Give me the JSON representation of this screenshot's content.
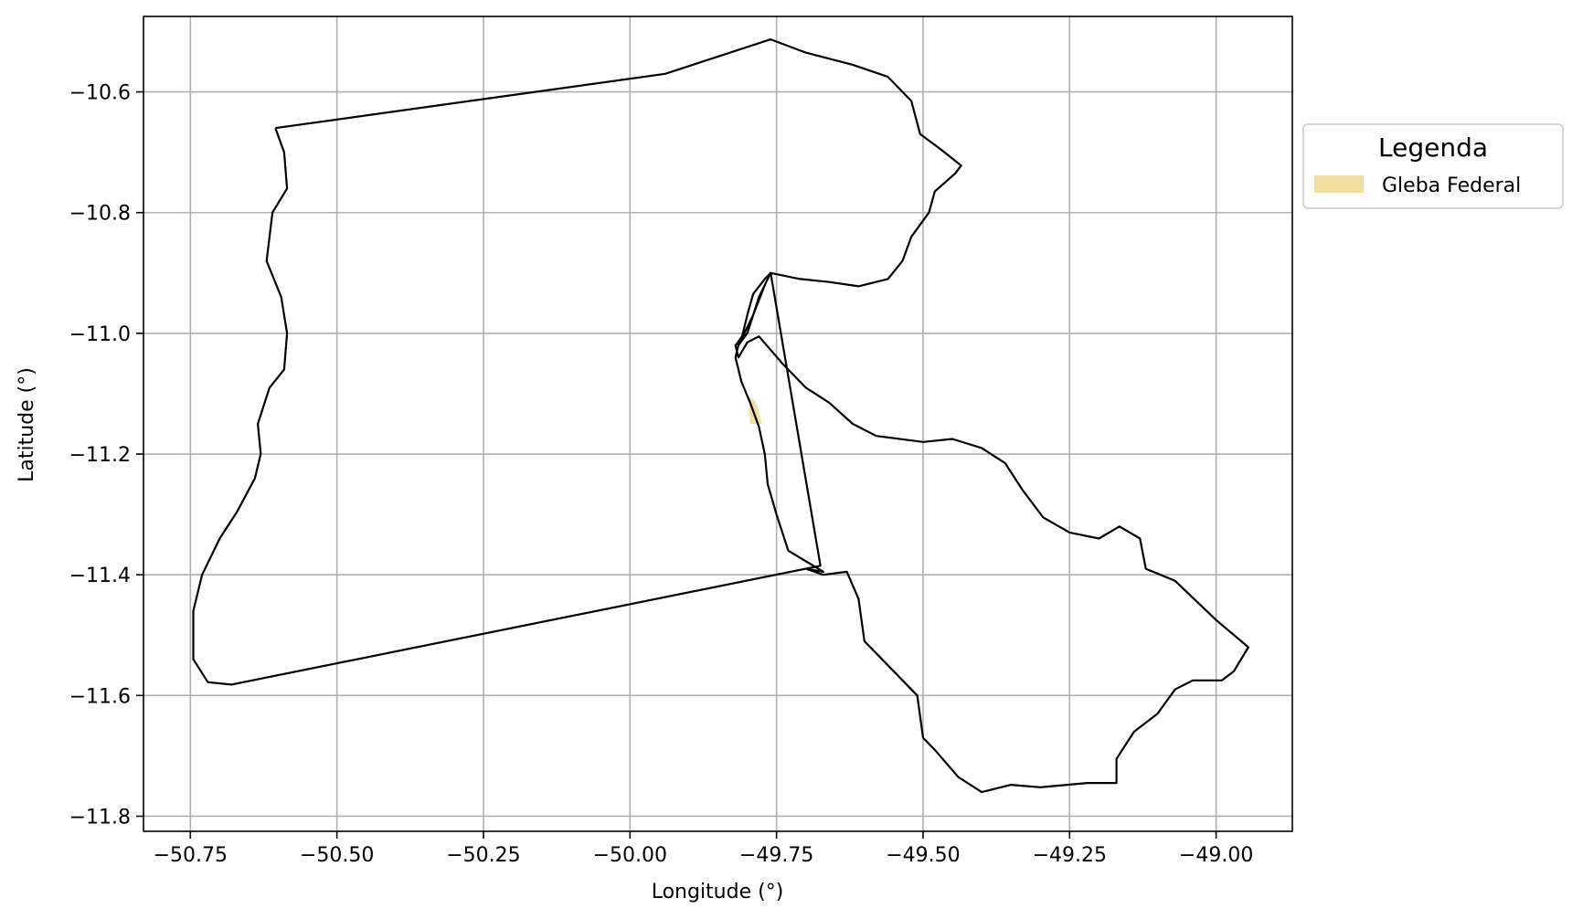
{
  "chart_data": {
    "type": "map",
    "title": "",
    "xlabel": "Longitude (°)",
    "ylabel": "Latitude (°)",
    "xlim": [
      -50.83,
      -48.87
    ],
    "ylim": [
      -11.825,
      -10.475
    ],
    "xticks": [
      -50.75,
      -50.5,
      -50.25,
      -50.0,
      -49.75,
      -49.5,
      -49.25,
      -49.0
    ],
    "xtick_labels": [
      "−50.75",
      "−50.50",
      "−50.25",
      "−50.00",
      "−49.75",
      "−49.50",
      "−49.25",
      "−49.00"
    ],
    "yticks": [
      -10.6,
      -10.8,
      -11.0,
      -11.2,
      -11.4,
      -11.6,
      -11.8
    ],
    "ytick_labels": [
      "−10.6",
      "−10.8",
      "−11.0",
      "−11.2",
      "−11.4",
      "−11.6",
      "−11.8"
    ],
    "grid": true,
    "legend": {
      "title": "Legenda",
      "placement": "outside-right-top",
      "entries": [
        {
          "label": "Gleba Federal",
          "color": "#f0df9e"
        }
      ]
    },
    "boundary_color": "#000000",
    "boundary": [
      [
        -50.605,
        -10.66
      ],
      [
        -49.94,
        -10.57
      ],
      [
        -49.76,
        -10.513
      ],
      [
        -49.7,
        -10.535
      ],
      [
        -49.62,
        -10.555
      ],
      [
        -49.56,
        -10.575
      ],
      [
        -49.52,
        -10.615
      ],
      [
        -49.505,
        -10.67
      ],
      [
        -49.47,
        -10.695
      ],
      [
        -49.435,
        -10.722
      ],
      [
        -49.445,
        -10.735
      ],
      [
        -49.48,
        -10.765
      ],
      [
        -49.49,
        -10.8
      ],
      [
        -49.52,
        -10.84
      ],
      [
        -49.535,
        -10.88
      ],
      [
        -49.56,
        -10.91
      ],
      [
        -49.61,
        -10.922
      ],
      [
        -49.66,
        -10.915
      ],
      [
        -49.71,
        -10.91
      ],
      [
        -49.76,
        -10.9
      ],
      [
        -49.77,
        -10.92
      ],
      [
        -49.79,
        -10.97
      ],
      [
        -49.8,
        -11.0
      ],
      [
        -49.82,
        -11.02
      ],
      [
        -49.815,
        -11.04
      ],
      [
        -49.8,
        -11.015
      ],
      [
        -49.78,
        -11.005
      ],
      [
        -49.74,
        -11.05
      ],
      [
        -49.7,
        -11.09
      ],
      [
        -49.66,
        -11.115
      ],
      [
        -49.62,
        -11.15
      ],
      [
        -49.58,
        -11.17
      ],
      [
        -49.5,
        -11.18
      ],
      [
        -49.45,
        -11.175
      ],
      [
        -49.4,
        -11.19
      ],
      [
        -49.36,
        -11.215
      ],
      [
        -49.33,
        -11.26
      ],
      [
        -49.295,
        -11.305
      ],
      [
        -49.25,
        -11.33
      ],
      [
        -49.2,
        -11.34
      ],
      [
        -49.165,
        -11.32
      ],
      [
        -49.13,
        -11.34
      ],
      [
        -49.12,
        -11.39
      ],
      [
        -49.07,
        -11.41
      ],
      [
        -49.0,
        -11.475
      ],
      [
        -48.945,
        -11.52
      ],
      [
        -48.97,
        -11.56
      ],
      [
        -48.99,
        -11.575
      ],
      [
        -49.04,
        -11.575
      ],
      [
        -49.07,
        -11.59
      ],
      [
        -49.1,
        -11.63
      ],
      [
        -49.14,
        -11.66
      ],
      [
        -49.17,
        -11.705
      ],
      [
        -49.17,
        -11.745
      ],
      [
        -49.22,
        -11.745
      ],
      [
        -49.3,
        -11.752
      ],
      [
        -49.35,
        -11.748
      ],
      [
        -49.4,
        -11.76
      ],
      [
        -49.44,
        -11.735
      ],
      [
        -49.48,
        -11.69
      ],
      [
        -49.5,
        -11.67
      ],
      [
        -49.51,
        -11.6
      ],
      [
        -49.56,
        -11.55
      ],
      [
        -49.6,
        -11.51
      ],
      [
        -49.61,
        -11.44
      ],
      [
        -49.63,
        -11.395
      ],
      [
        -49.67,
        -11.4
      ],
      [
        -49.7,
        -11.39
      ],
      [
        -49.67,
        -11.395
      ],
      [
        -49.73,
        -11.36
      ],
      [
        -49.75,
        -11.3
      ],
      [
        -49.765,
        -11.25
      ],
      [
        -49.77,
        -11.2
      ],
      [
        -49.78,
        -11.155
      ],
      [
        -49.795,
        -11.115
      ],
      [
        -49.81,
        -11.08
      ],
      [
        -49.82,
        -11.04
      ],
      [
        -49.815,
        -11.02
      ],
      [
        -49.8,
        -11.0
      ],
      [
        -49.79,
        -10.97
      ],
      [
        -49.77,
        -10.92
      ],
      [
        -49.76,
        -10.9
      ],
      [
        -49.77,
        -10.91
      ],
      [
        -49.79,
        -10.935
      ],
      [
        -49.8,
        -10.97
      ],
      [
        -49.81,
        -11.01
      ],
      [
        -49.82,
        -11.02
      ],
      [
        -49.805,
        -11.0
      ],
      [
        -49.79,
        -10.97
      ],
      [
        -49.78,
        -10.94
      ],
      [
        -49.765,
        -10.91
      ],
      [
        -49.76,
        -10.9
      ],
      [
        -49.675,
        -11.385
      ],
      [
        -50.68,
        -11.582
      ],
      [
        -50.72,
        -11.578
      ],
      [
        -50.745,
        -11.54
      ],
      [
        -50.745,
        -11.46
      ],
      [
        -50.73,
        -11.4
      ],
      [
        -50.7,
        -11.34
      ],
      [
        -50.67,
        -11.295
      ],
      [
        -50.64,
        -11.24
      ],
      [
        -50.63,
        -11.2
      ],
      [
        -50.635,
        -11.15
      ],
      [
        -50.615,
        -11.09
      ],
      [
        -50.59,
        -11.06
      ],
      [
        -50.585,
        -11.0
      ],
      [
        -50.595,
        -10.94
      ],
      [
        -50.62,
        -10.88
      ],
      [
        -50.615,
        -10.84
      ],
      [
        -50.61,
        -10.8
      ],
      [
        -50.585,
        -10.76
      ],
      [
        -50.59,
        -10.7
      ],
      [
        -50.605,
        -10.66
      ]
    ],
    "gleba_federal": [
      [
        -49.795,
        -11.105
      ],
      [
        -49.785,
        -11.115
      ],
      [
        -49.78,
        -11.13
      ],
      [
        -49.775,
        -11.15
      ],
      [
        -49.795,
        -11.15
      ],
      [
        -49.797,
        -11.125
      ]
    ]
  }
}
